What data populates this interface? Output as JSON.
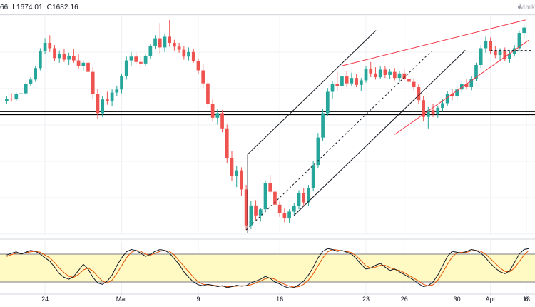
{
  "header": {
    "open_fragment": "66",
    "low": "L1674.01",
    "close": "C1682.16",
    "watermark": "Mark"
  },
  "colors": {
    "up_candle": "#26a69a",
    "down_candle": "#ef5350",
    "channel": "#131722",
    "wedge": "#f23645",
    "stoch_k": "#131722",
    "stoch_d": "#e65100",
    "stoch_band": "#fff9c4",
    "grid": "#eef0f3"
  },
  "chart_data": {
    "type": "candlestick",
    "title": "",
    "x_ticks": [
      "24",
      "Mar",
      "9",
      "16",
      "23",
      "26",
      "30",
      "Apr",
      "6",
      "13"
    ],
    "candles": [
      [
        100,
        100.6,
        99.6,
        100.3
      ],
      [
        100.3,
        101.0,
        99.9,
        100.2
      ],
      [
        100.2,
        101.1,
        100.0,
        100.9
      ],
      [
        100.9,
        101.4,
        100.5,
        101.0
      ],
      [
        101.0,
        102.4,
        100.8,
        102.2
      ],
      [
        102.2,
        103.1,
        101.9,
        102.8
      ],
      [
        102.8,
        104.6,
        102.5,
        104.3
      ],
      [
        104.3,
        106.9,
        104.0,
        106.5
      ],
      [
        106.5,
        108.2,
        106.1,
        107.6
      ],
      [
        107.6,
        108.6,
        106.4,
        106.9
      ],
      [
        106.9,
        107.3,
        105.2,
        105.6
      ],
      [
        105.6,
        106.6,
        105.0,
        106.2
      ],
      [
        106.2,
        106.8,
        105.1,
        105.4
      ],
      [
        105.4,
        106.3,
        104.7,
        105.9
      ],
      [
        105.9,
        106.8,
        105.0,
        105.3
      ],
      [
        105.3,
        106.1,
        104.2,
        104.6
      ],
      [
        104.6,
        105.3,
        103.9,
        105.0
      ],
      [
        105.0,
        105.7,
        103.4,
        103.8
      ],
      [
        103.8,
        104.4,
        100.2,
        100.9
      ],
      [
        100.9,
        101.6,
        97.6,
        98.4
      ],
      [
        98.4,
        100.6,
        97.9,
        100.2
      ],
      [
        100.2,
        101.2,
        99.5,
        100.0
      ],
      [
        100.0,
        101.5,
        99.3,
        101.1
      ],
      [
        101.1,
        102.0,
        100.6,
        101.5
      ],
      [
        101.5,
        103.5,
        101.0,
        103.2
      ],
      [
        103.2,
        105.8,
        102.8,
        105.3
      ],
      [
        105.3,
        106.4,
        104.6,
        105.8
      ],
      [
        105.8,
        106.3,
        104.8,
        105.1
      ],
      [
        105.1,
        105.8,
        104.4,
        104.9
      ],
      [
        104.9,
        106.2,
        104.6,
        105.9
      ],
      [
        105.9,
        107.4,
        105.5,
        107.2
      ],
      [
        107.2,
        108.6,
        106.8,
        108.2
      ],
      [
        108.2,
        110.2,
        106.2,
        107.0
      ],
      [
        107.0,
        108.8,
        106.4,
        108.4
      ],
      [
        108.4,
        110.6,
        107.1,
        107.6
      ],
      [
        107.6,
        108.0,
        106.6,
        107.1
      ],
      [
        107.1,
        107.6,
        106.3,
        106.7
      ],
      [
        106.7,
        107.2,
        105.4,
        105.8
      ],
      [
        105.8,
        107.0,
        105.3,
        106.4
      ],
      [
        106.4,
        106.8,
        105.0,
        105.2
      ],
      [
        105.2,
        105.6,
        103.6,
        104.0
      ],
      [
        104.0,
        104.9,
        101.7,
        102.3
      ],
      [
        102.3,
        102.9,
        99.1,
        99.6
      ],
      [
        99.6,
        100.2,
        97.3,
        97.8
      ],
      [
        97.8,
        98.9,
        96.9,
        98.4
      ],
      [
        98.4,
        98.8,
        95.9,
        96.4
      ],
      [
        96.4,
        96.9,
        91.8,
        92.5
      ],
      [
        92.5,
        93.4,
        89.5,
        90.2
      ],
      [
        90.2,
        91.5,
        88.7,
        90.9
      ],
      [
        90.9,
        91.3,
        87.6,
        88.4
      ],
      [
        88.4,
        89.0,
        83.1,
        83.7
      ],
      [
        83.7,
        86.9,
        83.2,
        86.3
      ],
      [
        86.3,
        87.0,
        84.4,
        85.0
      ],
      [
        85.0,
        86.0,
        84.2,
        85.8
      ],
      [
        85.8,
        89.6,
        85.4,
        89.2
      ],
      [
        89.2,
        90.3,
        87.8,
        88.1
      ],
      [
        88.1,
        88.7,
        85.9,
        86.4
      ],
      [
        86.4,
        86.9,
        84.8,
        85.3
      ],
      [
        85.3,
        85.9,
        84.1,
        84.6
      ],
      [
        84.6,
        85.8,
        84.0,
        85.5
      ],
      [
        85.5,
        86.6,
        85.0,
        86.2
      ],
      [
        86.2,
        88.3,
        85.8,
        87.9
      ],
      [
        87.9,
        88.6,
        86.3,
        86.7
      ],
      [
        86.7,
        89.0,
        86.2,
        88.6
      ],
      [
        88.6,
        92.1,
        88.2,
        91.6
      ],
      [
        91.6,
        95.8,
        91.2,
        95.2
      ],
      [
        95.2,
        98.9,
        94.8,
        98.4
      ],
      [
        98.4,
        101.7,
        98.0,
        101.2
      ],
      [
        101.2,
        102.6,
        100.3,
        102.2
      ],
      [
        102.2,
        103.8,
        101.3,
        101.9
      ],
      [
        101.9,
        103.6,
        101.1,
        103.2
      ],
      [
        103.2,
        103.9,
        101.8,
        102.3
      ],
      [
        102.3,
        103.7,
        101.9,
        103.0
      ],
      [
        103.0,
        103.5,
        101.8,
        102.1
      ],
      [
        102.1,
        103.0,
        101.3,
        102.7
      ],
      [
        102.7,
        104.6,
        102.4,
        104.2
      ],
      [
        104.2,
        105.1,
        103.1,
        103.6
      ],
      [
        103.6,
        104.4,
        102.8,
        103.1
      ],
      [
        103.1,
        104.5,
        102.9,
        104.1
      ],
      [
        104.1,
        104.6,
        103.0,
        103.4
      ],
      [
        103.4,
        104.2,
        102.9,
        103.8
      ],
      [
        103.8,
        104.3,
        102.7,
        103.0
      ],
      [
        103.0,
        103.9,
        102.5,
        103.6
      ],
      [
        103.6,
        104.1,
        102.7,
        102.9
      ],
      [
        102.9,
        103.4,
        102.1,
        102.5
      ],
      [
        102.5,
        103.0,
        101.4,
        101.8
      ],
      [
        101.8,
        102.2,
        99.6,
        100.1
      ],
      [
        100.1,
        100.6,
        97.3,
        97.9
      ],
      [
        97.9,
        99.2,
        96.4,
        98.8
      ],
      [
        98.8,
        99.6,
        97.9,
        98.3
      ],
      [
        98.3,
        99.4,
        97.8,
        99.1
      ],
      [
        99.1,
        100.2,
        98.6,
        99.7
      ],
      [
        99.7,
        101.3,
        99.3,
        100.9
      ],
      [
        100.9,
        101.6,
        100.1,
        100.6
      ],
      [
        100.6,
        101.9,
        100.2,
        101.5
      ],
      [
        101.5,
        102.6,
        101.1,
        102.2
      ],
      [
        102.2,
        102.9,
        101.5,
        101.8
      ],
      [
        101.8,
        103.2,
        101.4,
        102.9
      ],
      [
        102.9,
        105.0,
        102.6,
        104.7
      ],
      [
        104.7,
        107.3,
        104.3,
        106.9
      ],
      [
        106.9,
        108.4,
        106.3,
        107.8
      ],
      [
        107.8,
        108.3,
        106.1,
        106.5
      ],
      [
        106.5,
        107.2,
        105.6,
        106.0
      ],
      [
        106.0,
        106.9,
        105.3,
        106.6
      ],
      [
        106.6,
        107.0,
        105.2,
        105.5
      ],
      [
        105.5,
        106.5,
        105.0,
        106.2
      ],
      [
        106.2,
        107.3,
        105.8,
        106.9
      ],
      [
        106.9,
        109.2,
        106.6,
        108.9
      ],
      [
        108.9,
        110.0,
        108.2,
        109.6
      ]
    ],
    "stochastic": {
      "k": [
        78,
        82,
        85,
        80,
        84,
        88,
        86,
        80,
        72,
        65,
        52,
        38,
        30,
        26,
        32,
        45,
        58,
        48,
        30,
        18,
        15,
        22,
        35,
        55,
        72,
        85,
        90,
        88,
        82,
        75,
        80,
        86,
        90,
        88,
        82,
        70,
        58,
        42,
        30,
        20,
        14,
        12,
        15,
        13,
        10,
        12,
        8,
        10,
        13,
        11,
        12,
        18,
        22,
        26,
        32,
        28,
        20,
        16,
        10,
        7,
        8,
        14,
        22,
        35,
        52,
        72,
        86,
        92,
        90,
        86,
        88,
        84,
        80,
        70,
        58,
        48,
        50,
        56,
        60,
        52,
        45,
        48,
        42,
        36,
        30,
        24,
        16,
        10,
        12,
        20,
        35,
        55,
        75,
        86,
        84,
        82,
        86,
        90,
        88,
        82,
        72,
        60,
        50,
        42,
        38,
        44,
        62,
        80,
        90,
        92
      ],
      "d": [
        75,
        79,
        82,
        82,
        83,
        85,
        86,
        84,
        78,
        72,
        62,
        50,
        40,
        32,
        30,
        36,
        46,
        50,
        44,
        32,
        22,
        18,
        24,
        38,
        55,
        72,
        84,
        88,
        86,
        80,
        78,
        82,
        86,
        88,
        86,
        78,
        66,
        54,
        42,
        30,
        20,
        15,
        14,
        13,
        12,
        11,
        10,
        10,
        11,
        12,
        12,
        14,
        18,
        22,
        27,
        29,
        26,
        20,
        15,
        11,
        9,
        10,
        15,
        24,
        38,
        55,
        72,
        85,
        90,
        89,
        87,
        86,
        83,
        76,
        66,
        55,
        50,
        52,
        56,
        56,
        51,
        47,
        45,
        40,
        34,
        28,
        22,
        15,
        12,
        14,
        24,
        40,
        58,
        74,
        83,
        84,
        84,
        87,
        88,
        86,
        80,
        70,
        60,
        50,
        43,
        42,
        50,
        64,
        78,
        88
      ],
      "upper_band": 80,
      "lower_band": 20
    },
    "horizontal_levels": [
      98.6,
      98.2
    ],
    "dashed_level": 106.6,
    "grid": true,
    "legend": "none"
  }
}
